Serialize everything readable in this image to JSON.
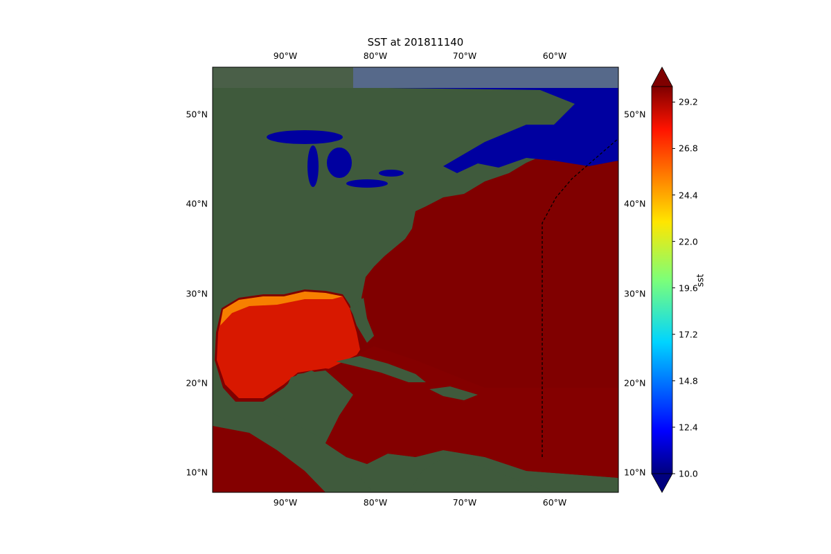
{
  "title": "SST at 201811140",
  "map": {
    "projection": "PlateCarree",
    "extent_lon": [
      -98,
      -53
    ],
    "extent_lat": [
      8,
      55
    ],
    "basemap": "satellite imagery",
    "lon_ticks_top": [
      "90°W",
      "80°W",
      "70°W",
      "60°W"
    ],
    "lon_ticks_bottom": [
      "90°W",
      "80°W",
      "70°W",
      "60°W"
    ],
    "lat_ticks_left": [
      "50°N",
      "40°N",
      "30°N",
      "20°N",
      "10°N"
    ],
    "lat_ticks_right": [
      "50°N",
      "40°N",
      "30°N",
      "20°N",
      "10°N"
    ],
    "track_line": {
      "style": "dashed",
      "color": "#000000"
    }
  },
  "colorbar": {
    "label": "sst",
    "colormap": "jet",
    "range": [
      10.0,
      30.0
    ],
    "extend": "both",
    "ticks": [
      "29.2",
      "26.8",
      "24.4",
      "22.0",
      "19.6",
      "17.2",
      "14.8",
      "12.4",
      "10.0"
    ]
  }
}
